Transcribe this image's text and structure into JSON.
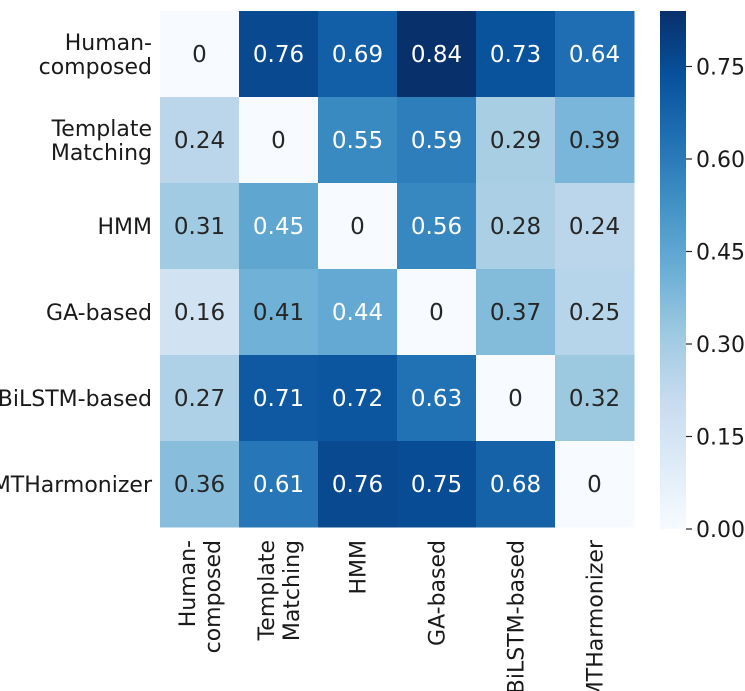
{
  "chart_data": {
    "type": "heatmap",
    "rows": [
      [
        "Human-",
        "composed"
      ],
      [
        "Template",
        "Matching"
      ],
      [
        "HMM"
      ],
      [
        "GA-based"
      ],
      [
        "BiLSTM-based"
      ],
      [
        "MTHarmonizer"
      ]
    ],
    "cols": [
      [
        "Human-",
        "composed"
      ],
      [
        "Template",
        "Matching"
      ],
      [
        "HMM"
      ],
      [
        "GA-based"
      ],
      [
        "BiLSTM-based"
      ],
      [
        "MTHarmonizer"
      ]
    ],
    "values": [
      [
        0,
        0.76,
        0.69,
        0.84,
        0.73,
        0.64
      ],
      [
        0.24,
        0,
        0.55,
        0.59,
        0.29,
        0.39
      ],
      [
        0.31,
        0.45,
        0,
        0.56,
        0.28,
        0.24
      ],
      [
        0.16,
        0.41,
        0.44,
        0,
        0.37,
        0.25
      ],
      [
        0.27,
        0.71,
        0.72,
        0.63,
        0,
        0.32
      ],
      [
        0.36,
        0.61,
        0.76,
        0.75,
        0.68,
        0
      ]
    ],
    "value_labels": [
      [
        "0",
        "0.76",
        "0.69",
        "0.84",
        "0.73",
        "0.64"
      ],
      [
        "0.24",
        "0",
        "0.55",
        "0.59",
        "0.29",
        "0.39"
      ],
      [
        "0.31",
        "0.45",
        "0",
        "0.56",
        "0.28",
        "0.24"
      ],
      [
        "0.16",
        "0.41",
        "0.44",
        "0",
        "0.37",
        "0.25"
      ],
      [
        "0.27",
        "0.71",
        "0.72",
        "0.63",
        "0",
        "0.32"
      ],
      [
        "0.36",
        "0.61",
        "0.76",
        "0.75",
        "0.68",
        "0"
      ]
    ],
    "colorscale": "Blues",
    "vmin": 0,
    "vmax": 0.84,
    "colorbar_ticks": [
      "0.00",
      "0.15",
      "0.30",
      "0.45",
      "0.60",
      "0.75"
    ],
    "colorbar_tick_values": [
      0,
      0.15,
      0.3,
      0.45,
      0.6,
      0.75
    ]
  }
}
